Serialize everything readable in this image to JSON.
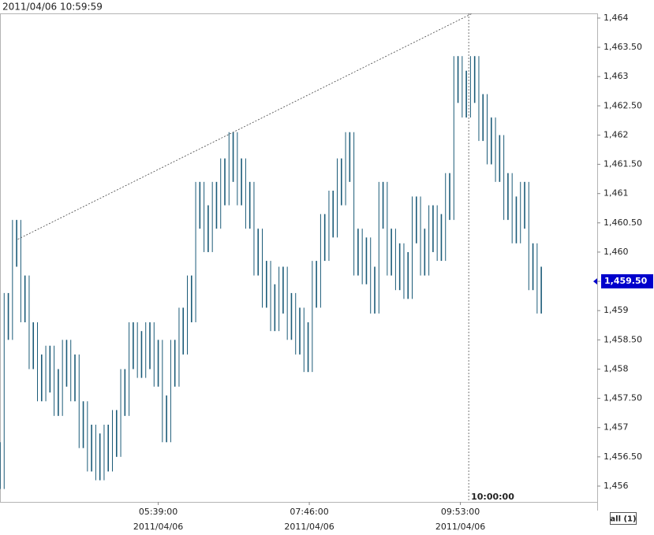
{
  "chart_data": {
    "type": "hilo",
    "timestamp": "2011/04/06 10:59:59",
    "color": "#1b5b78",
    "x": [
      206,
      213,
      220,
      227,
      234,
      241,
      248,
      255,
      262,
      269,
      276,
      283,
      290,
      297,
      304,
      311,
      318,
      325,
      332,
      339,
      346,
      353,
      360,
      367,
      374,
      381,
      388,
      395,
      402,
      409,
      416,
      423,
      430,
      437,
      444,
      451,
      458,
      465,
      472,
      479,
      486,
      493,
      500,
      507,
      514,
      521,
      528,
      535,
      542,
      549,
      556,
      563,
      570,
      577,
      584,
      591,
      598,
      605,
      612,
      619,
      626,
      633,
      640,
      647,
      654,
      661
    ],
    "high": [
      1456.75,
      1459.3,
      1460.55,
      1459.6,
      1458.8,
      1458.25,
      1458.4,
      1458.0,
      1458.5,
      1458.25,
      1457.45,
      1457.05,
      1456.9,
      1457.05,
      1457.3,
      1458.0,
      1458.8,
      1458.65,
      1458.8,
      1458.5,
      1457.55,
      1458.5,
      1459.05,
      1459.6,
      1461.2,
      1460.8,
      1461.2,
      1461.6,
      1462.05,
      1461.6,
      1461.2,
      1460.4,
      1459.85,
      1459.45,
      1459.75,
      1459.3,
      1459.05,
      1458.8,
      1459.85,
      1460.65,
      1461.05,
      1461.6,
      1462.05,
      1460.4,
      1460.25,
      1459.75,
      1461.2,
      1460.4,
      1460.15,
      1460.0,
      1460.95,
      1460.4,
      1460.8,
      1460.65,
      1461.35,
      1463.35,
      1463.1,
      1463.35,
      1462.7,
      1462.3,
      1462.0,
      1461.35,
      1460.95,
      1461.2,
      1460.15,
      1459.75
    ],
    "low": [
      1455.95,
      1458.5,
      1459.75,
      1458.8,
      1458.0,
      1457.45,
      1457.6,
      1457.2,
      1457.7,
      1457.45,
      1456.65,
      1456.25,
      1456.1,
      1456.25,
      1456.5,
      1457.2,
      1458.0,
      1457.85,
      1458.0,
      1457.7,
      1456.75,
      1457.7,
      1458.25,
      1458.8,
      1460.4,
      1460.0,
      1460.4,
      1460.8,
      1461.2,
      1460.8,
      1460.4,
      1459.6,
      1459.05,
      1458.65,
      1458.95,
      1458.5,
      1458.25,
      1457.95,
      1459.05,
      1459.85,
      1460.25,
      1460.8,
      1461.2,
      1459.6,
      1459.45,
      1458.95,
      1460.4,
      1459.6,
      1459.35,
      1459.2,
      1460.15,
      1459.6,
      1460.0,
      1459.85,
      1460.55,
      1462.55,
      1462.3,
      1462.55,
      1461.9,
      1461.5,
      1461.2,
      1460.55,
      1460.15,
      1460.4,
      1459.35,
      1458.95
    ],
    "xlim": [
      206,
      708
    ],
    "xticks": [
      {
        "value": 339,
        "label": "05:39:00"
      },
      {
        "value": 466,
        "label": "07:46:00"
      },
      {
        "value": 593,
        "label": "09:53:00"
      }
    ],
    "xtick_dates": [
      "2011/04/06",
      "2011/04/06",
      "2011/04/06"
    ],
    "ylim": [
      1455.73,
      1464.08
    ],
    "yticks": [
      {
        "value": 1456,
        "label": "1,456"
      },
      {
        "value": 1456.5,
        "label": "1,456.50"
      },
      {
        "value": 1457,
        "label": "1,457"
      },
      {
        "value": 1457.5,
        "label": "1,457.50"
      },
      {
        "value": 1458,
        "label": "1,458"
      },
      {
        "value": 1458.5,
        "label": "1,458.50"
      },
      {
        "value": 1459,
        "label": "1,459"
      },
      {
        "value": 1459.5,
        "label": "1,459.50"
      },
      {
        "value": 1460,
        "label": "1,460"
      },
      {
        "value": 1460.5,
        "label": "1,460.50"
      },
      {
        "value": 1461,
        "label": "1,461"
      },
      {
        "value": 1461.5,
        "label": "1,461.50"
      },
      {
        "value": 1462,
        "label": "1,462"
      },
      {
        "value": 1462.5,
        "label": "1,462.50"
      },
      {
        "value": 1463,
        "label": "1,463"
      },
      {
        "value": 1463.5,
        "label": "1,463.50"
      },
      {
        "value": 1464,
        "label": "1,464"
      }
    ],
    "trendline": {
      "x": [
        221,
        603
      ],
      "values": [
        1460.22,
        1464.08
      ]
    },
    "crosshair": {
      "x": 600,
      "label": "10:00:00"
    },
    "last_price": {
      "value": 1459.5,
      "label": "1,459.50"
    },
    "button": "all (1)"
  }
}
